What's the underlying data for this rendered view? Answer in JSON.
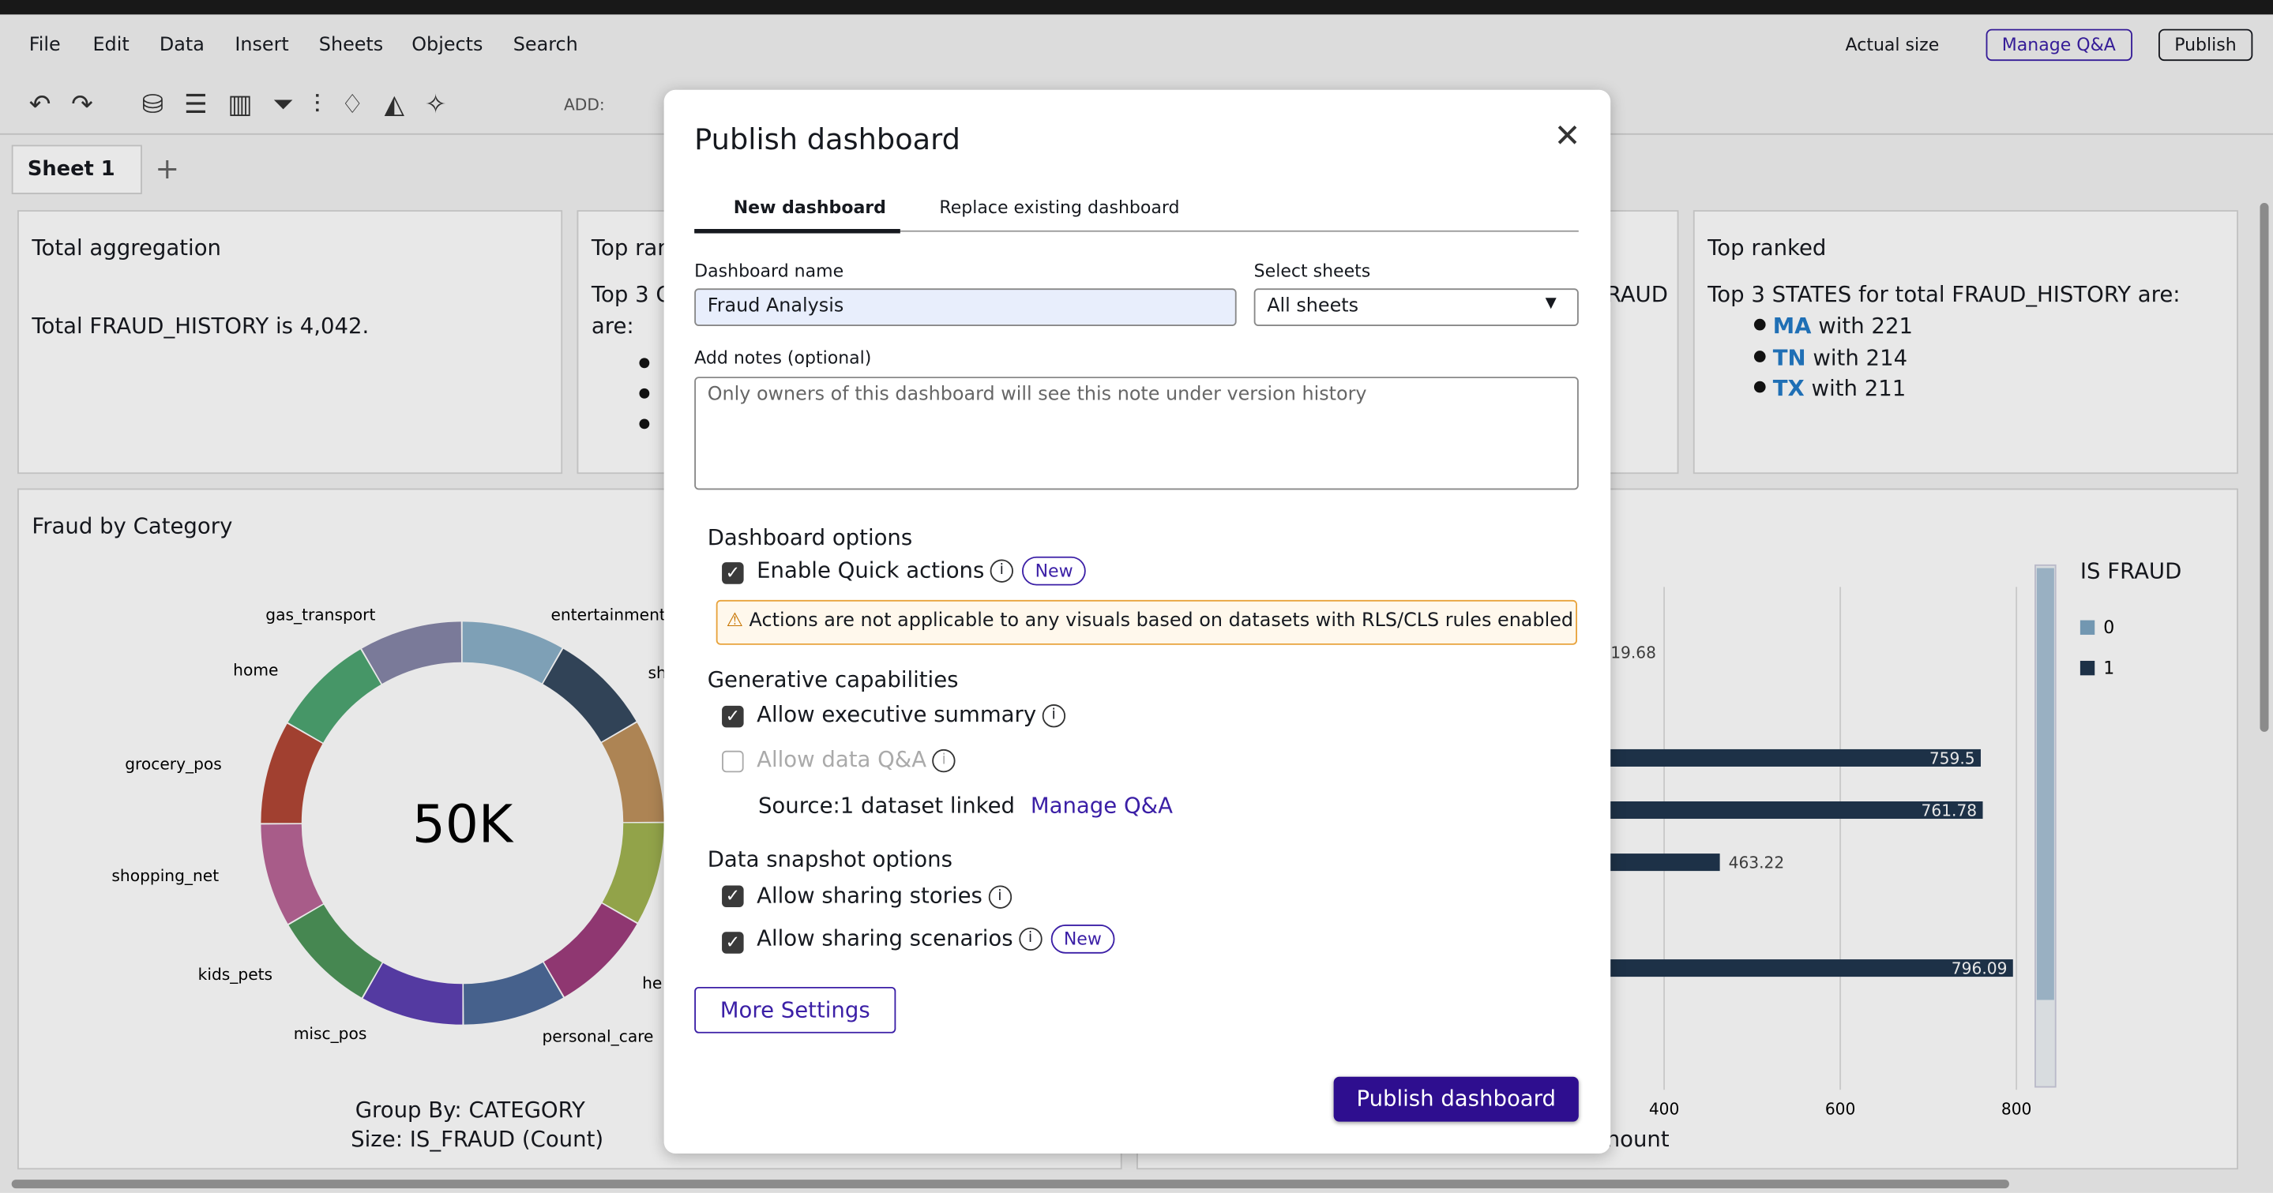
{
  "menu": [
    "File",
    "Edit",
    "Data",
    "Insert",
    "Sheets",
    "Objects",
    "Search"
  ],
  "toolbar": {
    "add_label": "ADD:",
    "actual_size": "Actual size",
    "manage_qa": "Manage Q&A",
    "publish": "Publish"
  },
  "sheet_tab": "Sheet 1",
  "cards": {
    "total": {
      "title": "Total aggregation",
      "text": "Total FRAUD_HISTORY is 4,042."
    },
    "top_partial": {
      "title": "Top ran",
      "line1": "Top 3 C",
      "line2": "are:"
    },
    "fraud_partial": "RAUD",
    "top_ranked": {
      "title": "Top ranked",
      "text": "Top 3 STATES for total FRAUD_HISTORY are:",
      "items": [
        {
          "state": "MA",
          "rest": "with 221"
        },
        {
          "state": "TN",
          "rest": "with 214"
        },
        {
          "state": "TX",
          "rest": "with 211"
        }
      ]
    }
  },
  "donut": {
    "title": "Fraud by Category",
    "center": "50K",
    "labels": [
      "gas_transport",
      "entertainment",
      "home",
      "sh",
      "grocery_pos",
      "shopping_net",
      "kids_pets",
      "he",
      "misc_pos",
      "personal_care"
    ],
    "group_by": "Group By: CATEGORY",
    "size": "Size: IS_FRAUD (Count)"
  },
  "bars": {
    "partial_label": "19.68",
    "values": [
      759.5,
      761.78,
      463.22,
      796.09
    ],
    "xticks": [
      400,
      600,
      800
    ],
    "axis_label": "nount",
    "legend_title": "IS FRAUD",
    "legend": [
      "0",
      "1"
    ]
  },
  "modal": {
    "title": "Publish dashboard",
    "tabs": [
      "New dashboard",
      "Replace existing dashboard"
    ],
    "name_label": "Dashboard name",
    "name_value": "Fraud Analysis",
    "sheets_label": "Select sheets",
    "sheets_value": "All sheets",
    "notes_label": "Add notes (optional)",
    "notes_placeholder": "Only owners of this dashboard will see this note under version history",
    "dashboard_options": "Dashboard options",
    "quick_actions": "Enable Quick actions",
    "new_badge": "New",
    "warning": "Actions are not applicable to any visuals based on datasets with RLS/CLS rules enabled",
    "generative": "Generative capabilities",
    "exec_summary": "Allow executive summary",
    "data_qa": "Allow data Q&A",
    "source_label": "Source:",
    "source_value": "1 dataset linked",
    "manage_qa": "Manage Q&A",
    "snapshot": "Data snapshot options",
    "stories": "Allow sharing stories",
    "scenarios": "Allow sharing scenarios",
    "more_settings": "More Settings",
    "publish": "Publish dashboard"
  }
}
